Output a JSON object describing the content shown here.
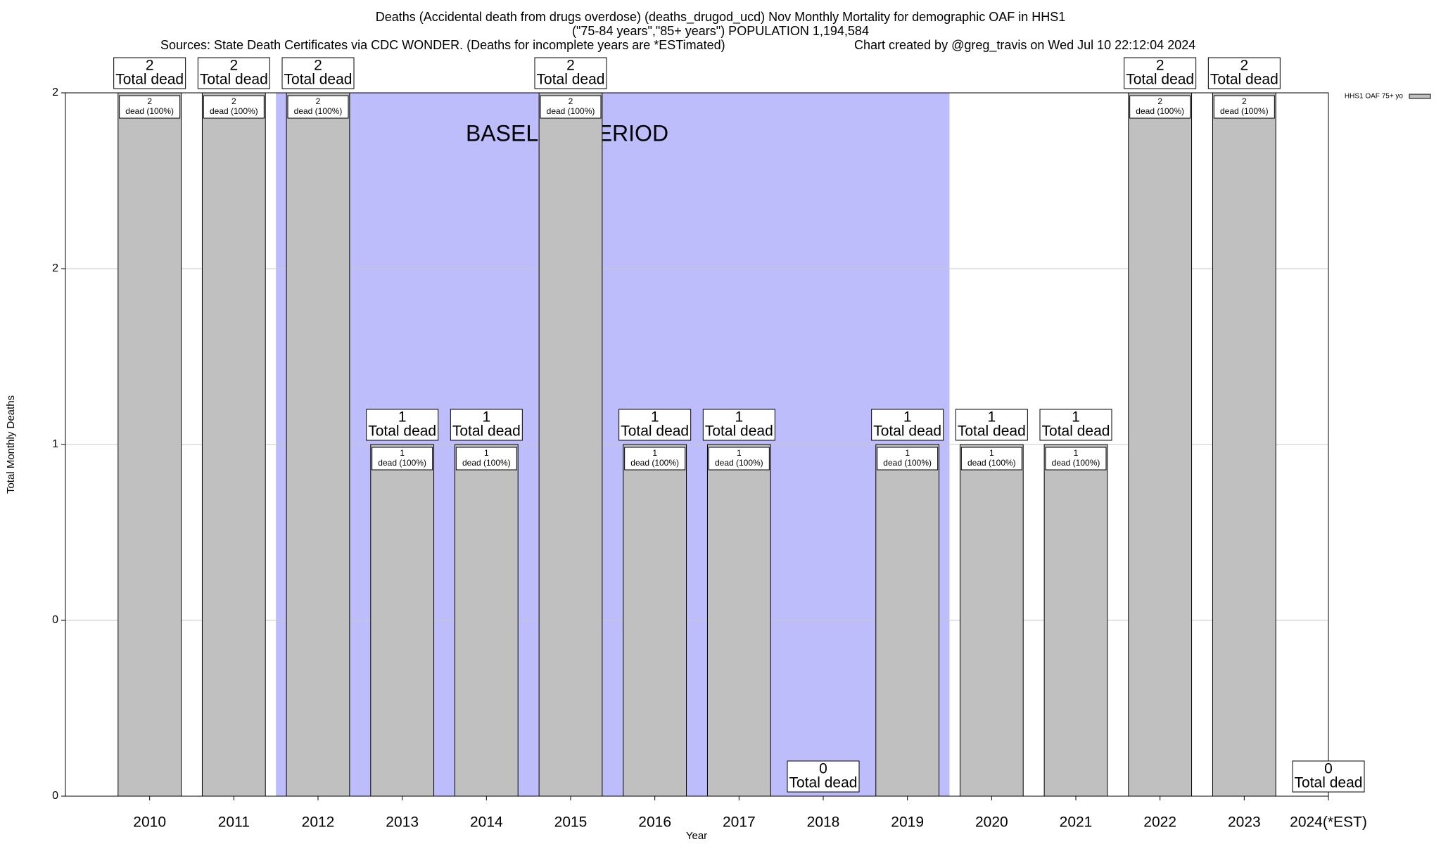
{
  "chart_data": {
    "type": "bar",
    "title_lines": [
      "Deaths (Accidental death from drugs overdose) (deaths_drugod_ucd) Nov Monthly Mortality for demographic OAF in HHS1",
      "(\"75-84 years\",\"85+ years\") POPULATION 1,194,584"
    ],
    "sources": "Sources: State Death Certificates via CDC WONDER. (Deaths for incomplete years are *ESTimated)",
    "credit": "Chart created by @greg_travis on Wed Jul 10 22:12:04 2024",
    "x_label": "Year",
    "y_label": "Total Monthly Deaths",
    "categories": [
      "2010",
      "2011",
      "2012",
      "2013",
      "2014",
      "2015",
      "2016",
      "2017",
      "2018",
      "2019",
      "2020",
      "2021",
      "2022",
      "2023",
      "2024(*EST)"
    ],
    "series": [
      {
        "name": "HHS1 OAF 75+ yo",
        "color": "#c0c0c0",
        "values": [
          2,
          2,
          2,
          1,
          1,
          2,
          1,
          1,
          0,
          1,
          1,
          1,
          2,
          2,
          0
        ]
      }
    ],
    "total_label": "Total dead",
    "inner_label": "dead (100%)",
    "baseline": {
      "label": "BASELINE PERIOD",
      "categories": [
        "2012",
        "2019"
      ],
      "color": "#bdbdfc"
    },
    "ylim": [
      0,
      2
    ],
    "yticks": [
      0,
      {
        "value": 0.5,
        "label": "0"
      },
      1,
      {
        "value": 1.5,
        "label": "2"
      },
      2
    ],
    "grid": true,
    "legend": "top-right"
  }
}
